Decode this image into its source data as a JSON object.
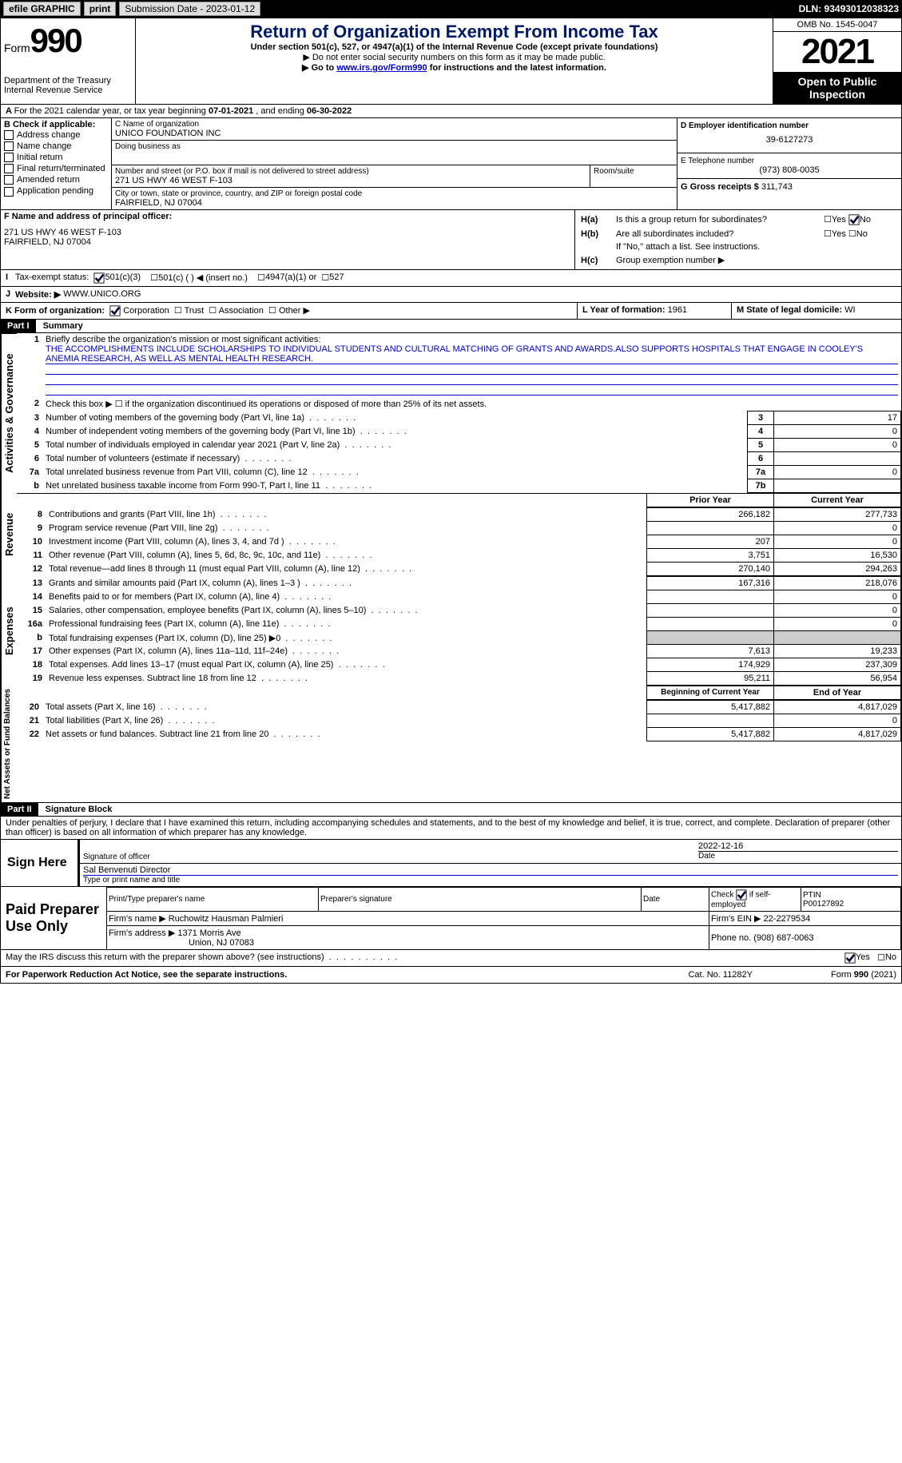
{
  "topbar": {
    "efile": "efile GRAPHIC",
    "print": "print",
    "subdate_label": "Submission Date - 2023-01-12",
    "dln": "DLN: 93493012038323"
  },
  "header": {
    "form_word": "Form",
    "form_num": "990",
    "dept": "Department of the Treasury",
    "irs": "Internal Revenue Service",
    "title": "Return of Organization Exempt From Income Tax",
    "sub1": "Under section 501(c), 527, or 4947(a)(1) of the Internal Revenue Code (except private foundations)",
    "sub2": "▶ Do not enter social security numbers on this form as it may be made public.",
    "sub3_pre": "▶ Go to ",
    "sub3_link": "www.irs.gov/Form990",
    "sub3_post": " for instructions and the latest information.",
    "omb": "OMB No. 1545-0047",
    "year": "2021",
    "open": "Open to Public Inspection"
  },
  "A": {
    "text_pre": "For the 2021 calendar year, or tax year beginning ",
    "begin": "07-01-2021",
    "mid": " , and ending ",
    "end": "06-30-2022"
  },
  "B": {
    "label": "B Check if applicable:",
    "items": [
      "Address change",
      "Name change",
      "Initial return",
      "Final return/terminated",
      "Amended return",
      "Application pending"
    ]
  },
  "C": {
    "name_label": "C Name of organization",
    "name": "UNICO FOUNDATION INC",
    "dba_label": "Doing business as",
    "addr_label": "Number and street (or P.O. box if mail is not delivered to street address)",
    "room_label": "Room/suite",
    "addr": "271 US HWY 46 WEST F-103",
    "city_label": "City or town, state or province, country, and ZIP or foreign postal code",
    "city": "FAIRFIELD, NJ  07004"
  },
  "D": {
    "label": "D Employer identification number",
    "value": "39-6127273"
  },
  "E": {
    "label": "E Telephone number",
    "value": "(973) 808-0035"
  },
  "G": {
    "label": "G Gross receipts $",
    "value": "311,743"
  },
  "F": {
    "label": "F  Name and address of principal officer:",
    "line1": "271 US HWY 46 WEST F-103",
    "line2": "FAIRFIELD, NJ  07004"
  },
  "H": {
    "a": "Is this a group return for subordinates?",
    "b": "Are all subordinates included?",
    "b_note": "If \"No,\" attach a list. See instructions.",
    "c": "Group exemption number ▶",
    "ha_label": "H(a)",
    "hb_label": "H(b)",
    "hc_label": "H(c)",
    "yes": "Yes",
    "no": "No"
  },
  "I": {
    "label": "I",
    "text": "Tax-exempt status:",
    "opt1": "501(c)(3)",
    "opt2": "501(c) (   ) ◀ (insert no.)",
    "opt3": "4947(a)(1) or",
    "opt4": "527"
  },
  "J": {
    "label": "J",
    "text": "Website: ▶",
    "value": "WWW.UNICO.ORG"
  },
  "K": {
    "label": "K Form of organization:",
    "opts": [
      "Corporation",
      "Trust",
      "Association",
      "Other ▶"
    ]
  },
  "L": {
    "label": "L Year of formation:",
    "value": "1961"
  },
  "M": {
    "label": "M State of legal domicile:",
    "value": "WI"
  },
  "part1": {
    "hdr": "Part I",
    "title": "Summary",
    "l1_label": "1",
    "l1_text": "Briefly describe the organization's mission or most significant activities:",
    "l1_val": "THE ACCOMPLISHMENTS INCLUDE SCHOLARSHIPS TO INDIVIDUAL STUDENTS AND CULTURAL MATCHING OF GRANTS AND AWARDS.ALSO SUPPORTS HOSPITALS THAT ENGAGE IN COOLEY'S ANEMIA RESEARCH, AS WELL AS MENTAL HEALTH RESEARCH.",
    "l2": "Check this box ▶ ☐ if the organization discontinued its operations or disposed of more than 25% of its net assets.",
    "sections": {
      "activities": "Activities & Governance",
      "revenue": "Revenue",
      "expenses": "Expenses",
      "netassets": "Net Assets or Fund Balances"
    },
    "rows_single": [
      {
        "n": "3",
        "t": "Number of voting members of the governing body (Part VI, line 1a)",
        "box": "3",
        "v": "17"
      },
      {
        "n": "4",
        "t": "Number of independent voting members of the governing body (Part VI, line 1b)",
        "box": "4",
        "v": "0"
      },
      {
        "n": "5",
        "t": "Total number of individuals employed in calendar year 2021 (Part V, line 2a)",
        "box": "5",
        "v": "0"
      },
      {
        "n": "6",
        "t": "Total number of volunteers (estimate if necessary)",
        "box": "6",
        "v": ""
      },
      {
        "n": "7a",
        "t": "Total unrelated business revenue from Part VIII, column (C), line 12",
        "box": "7a",
        "v": "0"
      },
      {
        "n": " b",
        "t": "Net unrelated business taxable income from Form 990-T, Part I, line 11",
        "box": "7b",
        "v": ""
      }
    ],
    "col_headers": {
      "prior": "Prior Year",
      "current": "Current Year"
    },
    "rows_rev": [
      {
        "n": "8",
        "t": "Contributions and grants (Part VIII, line 1h)",
        "p": "266,182",
        "c": "277,733"
      },
      {
        "n": "9",
        "t": "Program service revenue (Part VIII, line 2g)",
        "p": "",
        "c": "0"
      },
      {
        "n": "10",
        "t": "Investment income (Part VIII, column (A), lines 3, 4, and 7d )",
        "p": "207",
        "c": "0"
      },
      {
        "n": "11",
        "t": "Other revenue (Part VIII, column (A), lines 5, 6d, 8c, 9c, 10c, and 11e)",
        "p": "3,751",
        "c": "16,530"
      },
      {
        "n": "12",
        "t": "Total revenue—add lines 8 through 11 (must equal Part VIII, column (A), line 12)",
        "p": "270,140",
        "c": "294,263"
      }
    ],
    "rows_exp": [
      {
        "n": "13",
        "t": "Grants and similar amounts paid (Part IX, column (A), lines 1–3 )",
        "p": "167,316",
        "c": "218,076"
      },
      {
        "n": "14",
        "t": "Benefits paid to or for members (Part IX, column (A), line 4)",
        "p": "",
        "c": "0"
      },
      {
        "n": "15",
        "t": "Salaries, other compensation, employee benefits (Part IX, column (A), lines 5–10)",
        "p": "",
        "c": "0"
      },
      {
        "n": "16a",
        "t": "Professional fundraising fees (Part IX, column (A), line 11e)",
        "p": "",
        "c": "0"
      },
      {
        "n": "b",
        "t": "Total fundraising expenses (Part IX, column (D), line 25) ▶0",
        "p": "shade",
        "c": "shade"
      },
      {
        "n": "17",
        "t": "Other expenses (Part IX, column (A), lines 11a–11d, 11f–24e)",
        "p": "7,613",
        "c": "19,233"
      },
      {
        "n": "18",
        "t": "Total expenses. Add lines 13–17 (must equal Part IX, column (A), line 25)",
        "p": "174,929",
        "c": "237,309"
      },
      {
        "n": "19",
        "t": "Revenue less expenses. Subtract line 18 from line 12",
        "p": "95,211",
        "c": "56,954"
      }
    ],
    "col_headers2": {
      "begin": "Beginning of Current Year",
      "end": "End of Year"
    },
    "rows_net": [
      {
        "n": "20",
        "t": "Total assets (Part X, line 16)",
        "p": "5,417,882",
        "c": "4,817,029"
      },
      {
        "n": "21",
        "t": "Total liabilities (Part X, line 26)",
        "p": "",
        "c": "0"
      },
      {
        "n": "22",
        "t": "Net assets or fund balances. Subtract line 21 from line 20",
        "p": "5,417,882",
        "c": "4,817,029"
      }
    ]
  },
  "part2": {
    "hdr": "Part II",
    "title": "Signature Block",
    "decl": "Under penalties of perjury, I declare that I have examined this return, including accompanying schedules and statements, and to the best of my knowledge and belief, it is true, correct, and complete. Declaration of preparer (other than officer) is based on all information of which preparer has any knowledge."
  },
  "sign": {
    "here": "Sign Here",
    "sig_label": "Signature of officer",
    "date_label": "Date",
    "date": "2022-12-16",
    "name": "Sal Benvenuti  Director",
    "name_label": "Type or print name and title"
  },
  "paid": {
    "label": "Paid Preparer Use Only",
    "hdr_name": "Print/Type preparer's name",
    "hdr_sig": "Preparer's signature",
    "hdr_date": "Date",
    "hdr_check": "Check ☑ if self-employed",
    "hdr_ptin": "PTIN",
    "ptin": "P00127892",
    "firm_label": "Firm's name    ▶",
    "firm": "Ruchowitz Hausman Palmieri",
    "ein_label": "Firm's EIN ▶",
    "ein": "22-2279534",
    "addr_label": "Firm's address ▶",
    "addr1": "1371 Morris Ave",
    "addr2": "Union, NJ  07083",
    "phone_label": "Phone no.",
    "phone": "(908) 687-0063"
  },
  "bottom": {
    "discuss": "May the IRS discuss this return with the preparer shown above? (see instructions)",
    "yes": "Yes",
    "no": "No",
    "pra": "For Paperwork Reduction Act Notice, see the separate instructions.",
    "cat": "Cat. No. 11282Y",
    "form": "Form 990 (2021)"
  }
}
